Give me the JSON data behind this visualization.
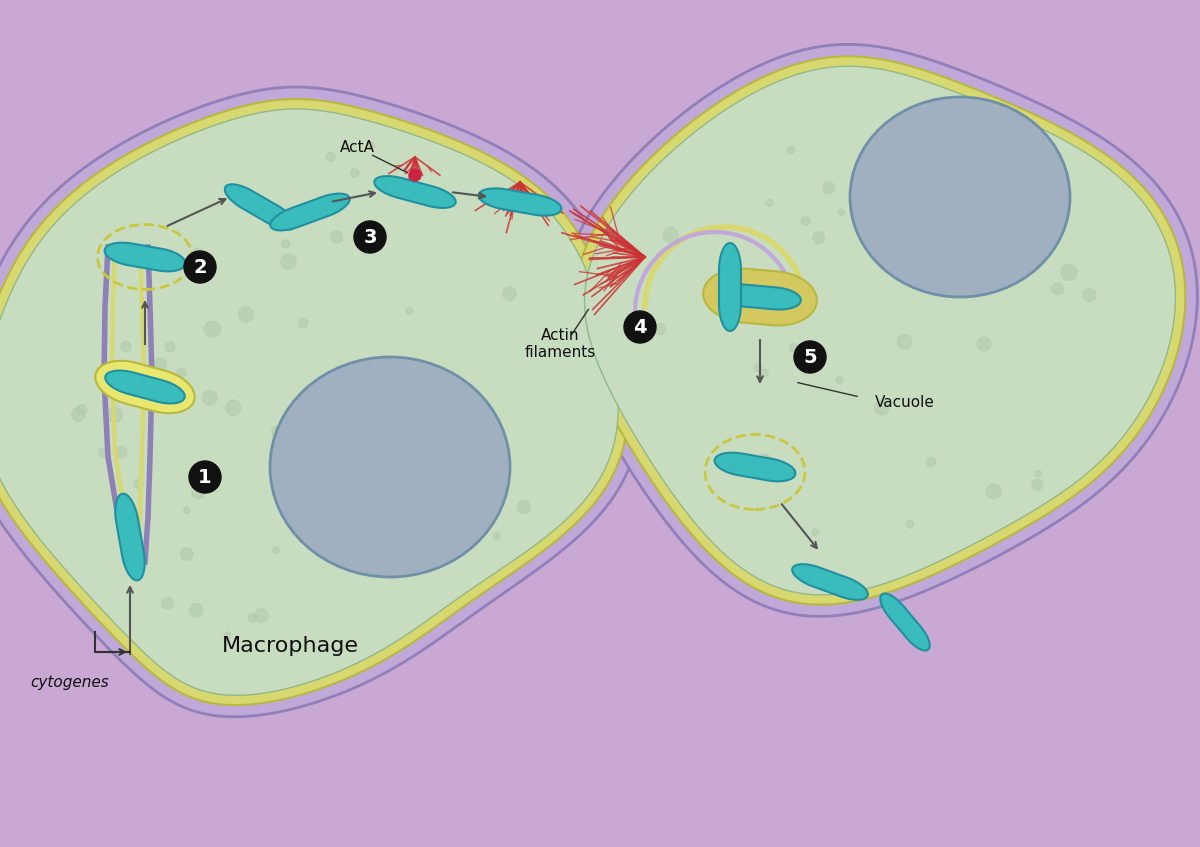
{
  "bg_color": "#ffffff",
  "purple_bg": "#c9a8d4",
  "cell1_fill": "#c8dcc0",
  "cell1_membrane_outer": "#b8d4b0",
  "cell_membrane_line": "#8aaa82",
  "cell_membrane_yellow": "#e8e896",
  "nucleus_fill": "#a8b8c8",
  "nucleus_outline": "#88a0b0",
  "bacterium_fill": "#3abcbc",
  "bacterium_outline": "#2090a0",
  "actin_color": "#cc3333",
  "vacuole_dashed": "#d4d870",
  "step_circle": "#111111",
  "step_text": "#ffffff",
  "arrow_color": "#555555",
  "label_color": "#111111",
  "macrophage_label": "Macrophage",
  "acta_label": "ActA",
  "actin_label": "Actin\nfilaments",
  "vacuole_label": "Vacuole",
  "cytogenes_label": "cytogenes",
  "steps": [
    "1",
    "2",
    "3",
    "4",
    "5"
  ]
}
